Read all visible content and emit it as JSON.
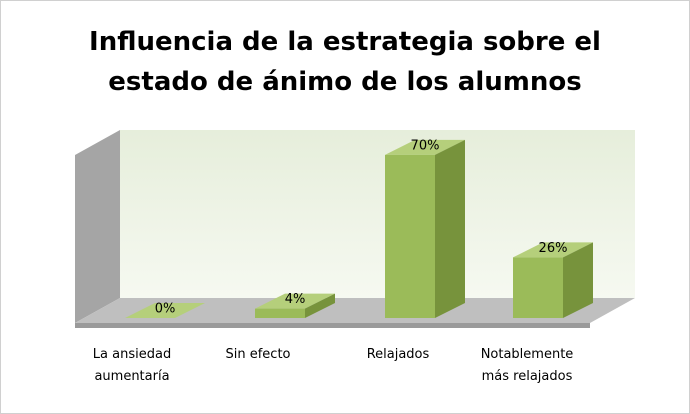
{
  "chart_data": {
    "type": "bar3d",
    "title": "Influencia de la estrategia sobre el estado de ánimo de los alumnos",
    "categories": [
      "La ansiedad aumentaría",
      "Sin efecto",
      "Relajados",
      "Notablemente más relajados"
    ],
    "values": [
      0,
      4,
      70,
      26
    ],
    "value_labels": [
      "0%",
      "4%",
      "70%",
      "26%"
    ],
    "color": "#9bbb59"
  }
}
